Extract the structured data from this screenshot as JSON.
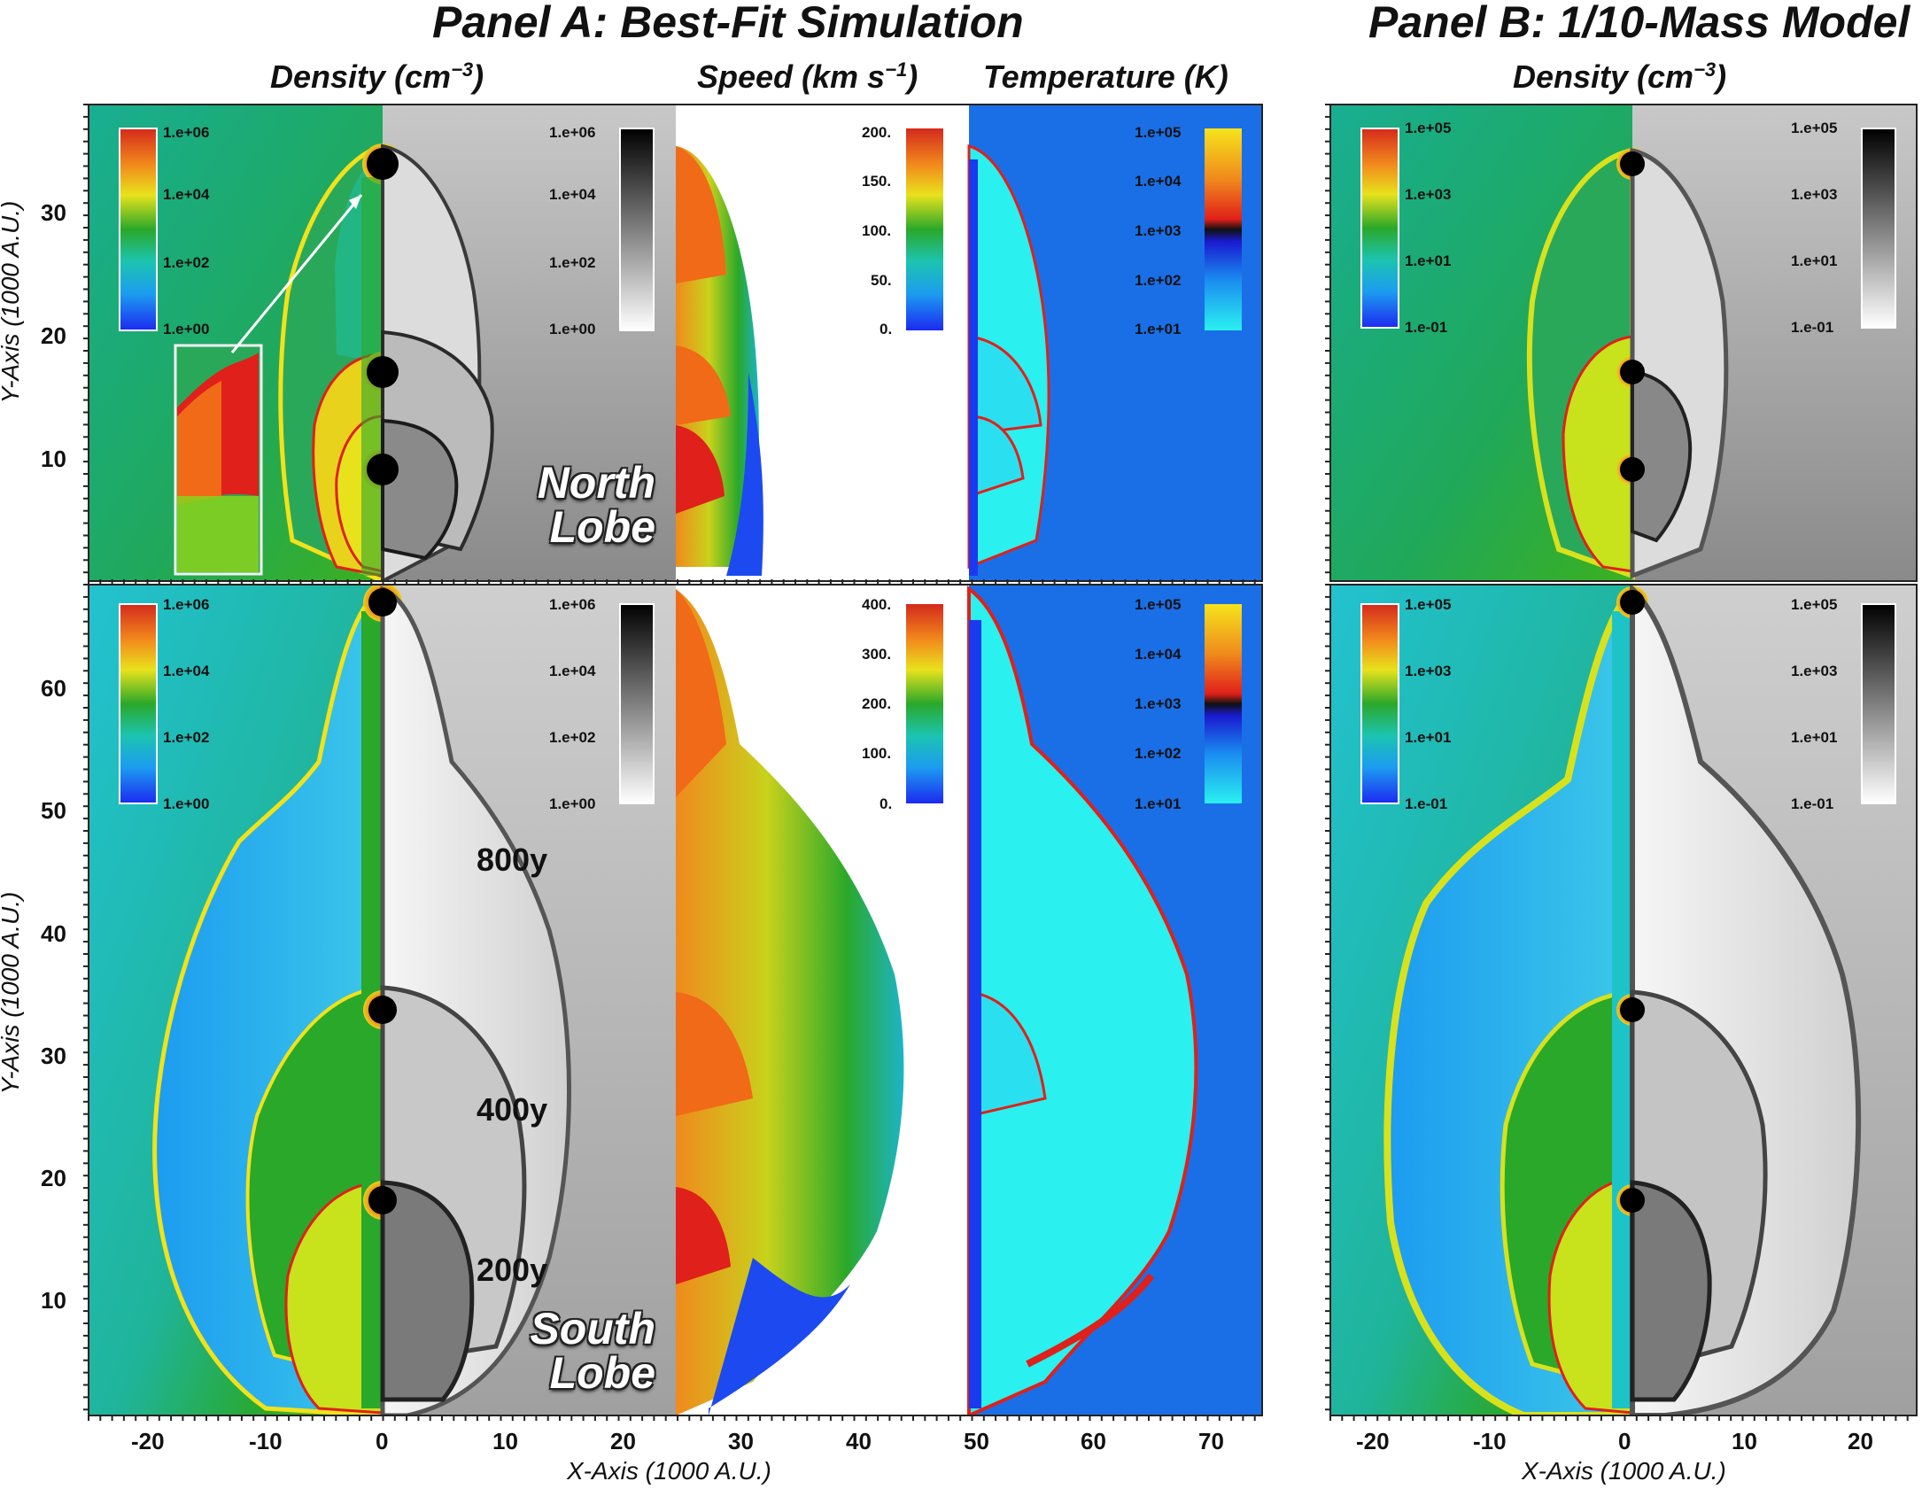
{
  "titles": {
    "panel_a": "Panel A: Best-Fit Simulation",
    "panel_b": "Panel B: 1/10-Mass Model"
  },
  "quantities": {
    "density": "Density (cm",
    "density_exp": "−3",
    "density_close": ")",
    "speed": "Speed  (km s",
    "speed_exp": "−1",
    "speed_close": ")",
    "temperature": "Temperature (K)",
    "density_b": "Density (cm",
    "density_b_exp": "−3",
    "density_b_close": ")"
  },
  "axes": {
    "y_label": "Y-Axis (1000 A.U.)",
    "x_label": "X-Axis (1000 A.U.)",
    "north_y_ticks": [
      "30",
      "20",
      "10"
    ],
    "south_y_ticks": [
      "60",
      "50",
      "40",
      "30",
      "20",
      "10"
    ],
    "x_ticks_a": [
      "-20",
      "-10",
      "0",
      "10",
      "20",
      "30",
      "40",
      "50",
      "60",
      "70"
    ],
    "x_ticks_b": [
      "-20",
      "-10",
      "0",
      "10",
      "20"
    ]
  },
  "colorbars": {
    "density_a": [
      "1.e+06",
      "1.e+04",
      "1.e+02",
      "1.e+00"
    ],
    "speed_north": [
      "200.",
      "150.",
      "100.",
      "50.",
      "0."
    ],
    "speed_south": [
      "400.",
      "300.",
      "200.",
      "100.",
      "0."
    ],
    "temperature": [
      "1.e+05",
      "1.e+04",
      "1.e+03",
      "1.e+02",
      "1.e+01"
    ],
    "density_b": [
      "1.e+05",
      "1.e+03",
      "1.e+01",
      "1.e-01"
    ]
  },
  "annotations": {
    "north_lobe_1": "North",
    "north_lobe_2": "Lobe",
    "south_lobe_1": "South",
    "south_lobe_2": "Lobe",
    "age_800": "800y",
    "age_400": "400y",
    "age_200": "200y"
  },
  "colors": {
    "ambient_teal": "#1fae8c",
    "ambient_cyan": "#24c4d4",
    "temperature_bg": "#1a6fe6",
    "jet_red": "#e0201a",
    "shock_yellow": "#f2e21a"
  }
}
